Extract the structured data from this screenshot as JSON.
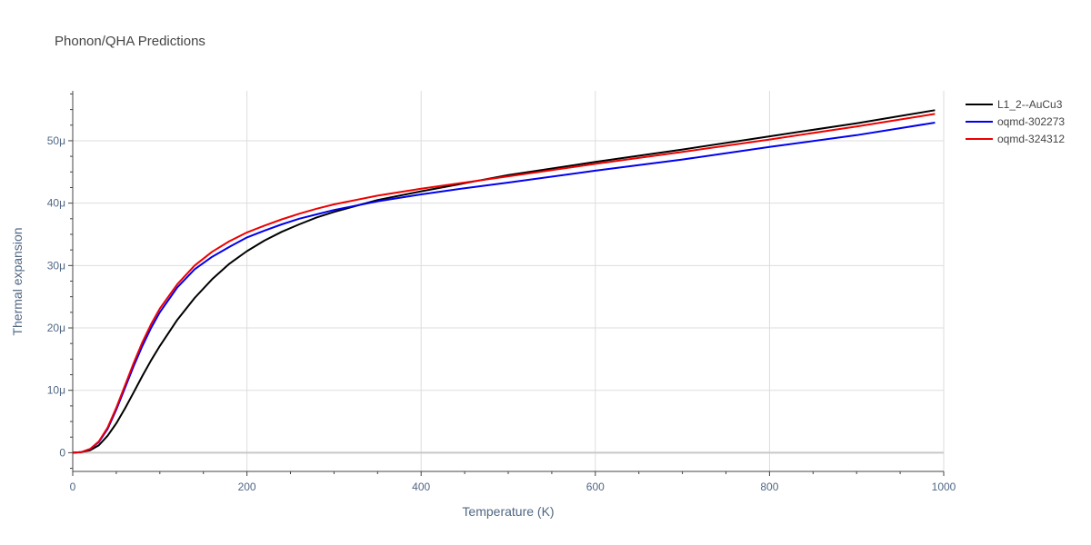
{
  "chart_data": {
    "type": "line",
    "title": "Phonon/QHA Predictions",
    "xlabel": "Temperature (K)",
    "ylabel": "Thermal expansion",
    "xlim": [
      0,
      1000
    ],
    "ylim": [
      -3,
      58
    ],
    "x_ticks": [
      0,
      200,
      400,
      600,
      800,
      1000
    ],
    "x_tick_labels": [
      "0",
      "200",
      "400",
      "600",
      "800",
      "1000"
    ],
    "y_ticks": [
      0,
      10,
      20,
      30,
      40,
      50
    ],
    "y_tick_labels": [
      "0",
      "10μ",
      "20μ",
      "30μ",
      "40μ",
      "50μ"
    ],
    "y_unit_note": "values in units of 1e-6 per K (μ)",
    "grid": true,
    "legend_position": "top-right",
    "series": [
      {
        "name": "L1_2--AuCu3",
        "color": "#000000",
        "x": [
          0,
          10,
          20,
          30,
          40,
          50,
          60,
          70,
          80,
          90,
          100,
          120,
          140,
          160,
          180,
          200,
          220,
          240,
          260,
          280,
          300,
          350,
          400,
          450,
          500,
          600,
          700,
          800,
          900,
          990
        ],
        "y": [
          0,
          0.1,
          0.4,
          1.2,
          2.7,
          4.7,
          7.1,
          9.7,
          12.3,
          14.8,
          17.1,
          21.3,
          24.8,
          27.8,
          30.3,
          32.3,
          34.0,
          35.4,
          36.6,
          37.7,
          38.6,
          40.5,
          41.9,
          43.2,
          44.5,
          46.6,
          48.6,
          50.7,
          52.8,
          54.9
        ]
      },
      {
        "name": "oqmd-302273",
        "color": "#0000ee",
        "x": [
          0,
          10,
          20,
          30,
          40,
          50,
          60,
          70,
          80,
          90,
          100,
          120,
          140,
          160,
          180,
          200,
          220,
          240,
          260,
          280,
          300,
          350,
          400,
          450,
          500,
          600,
          700,
          800,
          900,
          990
        ],
        "y": [
          0,
          0.1,
          0.6,
          1.7,
          3.8,
          6.9,
          10.4,
          13.9,
          17.1,
          20.0,
          22.5,
          26.5,
          29.4,
          31.4,
          33.0,
          34.5,
          35.6,
          36.6,
          37.5,
          38.2,
          38.9,
          40.3,
          41.4,
          42.4,
          43.3,
          45.2,
          47.0,
          49.0,
          50.9,
          52.9
        ]
      },
      {
        "name": "oqmd-324312",
        "color": "#ee0000",
        "x": [
          0,
          10,
          20,
          30,
          40,
          50,
          60,
          70,
          80,
          90,
          100,
          120,
          140,
          160,
          180,
          200,
          220,
          240,
          260,
          280,
          300,
          350,
          400,
          450,
          500,
          600,
          700,
          800,
          900,
          990
        ],
        "y": [
          0,
          0.1,
          0.6,
          1.8,
          4.0,
          7.2,
          10.8,
          14.4,
          17.7,
          20.6,
          23.1,
          27.0,
          30.0,
          32.2,
          33.9,
          35.3,
          36.4,
          37.4,
          38.3,
          39.1,
          39.8,
          41.2,
          42.3,
          43.3,
          44.3,
          46.3,
          48.2,
          50.2,
          52.3,
          54.3
        ]
      }
    ]
  }
}
